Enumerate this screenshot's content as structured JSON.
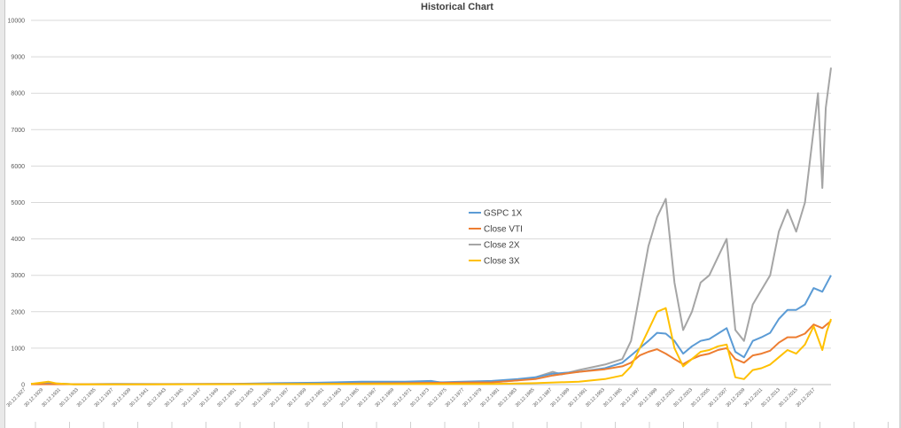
{
  "chart_data": {
    "type": "line",
    "title": "Historical Chart",
    "xlabel": "",
    "ylabel": "",
    "ylim": [
      0,
      10000
    ],
    "y_ticks": [
      0,
      1000,
      2000,
      3000,
      4000,
      5000,
      6000,
      7000,
      8000,
      9000,
      10000
    ],
    "x_range": [
      1927,
      2019
    ],
    "x_tick_labels": [
      "30.12.1927",
      "30.12.1929",
      "30.12.1931",
      "30.12.1933",
      "30.12.1935",
      "30.12.1937",
      "30.12.1939",
      "30.12.1941",
      "30.12.1943",
      "30.12.1945",
      "30.12.1947",
      "30.12.1949",
      "30.12.1951",
      "30.12.1953",
      "30.12.1955",
      "30.12.1957",
      "30.12.1959",
      "30.12.1961",
      "30.12.1963",
      "30.12.1965",
      "30.12.1967",
      "30.12.1969",
      "30.12.1971",
      "30.12.1973",
      "30.12.1975",
      "30.12.1977",
      "30.12.1979",
      "30.12.1981",
      "30.12.1983",
      "30.12.1985",
      "30.12.1987",
      "30.12.1989",
      "30.12.1991",
      "30.12.1993",
      "30.12.1995",
      "30.12.1997",
      "30.12.1999",
      "30.12.2001",
      "30.12.2003",
      "30.12.2005",
      "30.12.2007",
      "30.12.2009",
      "30.12.2011",
      "30.12.2013",
      "30.12.2015",
      "30.12.2017"
    ],
    "grid": true,
    "legend_position": "center",
    "series": [
      {
        "name": "GSPC 1X",
        "color": "#5b9bd5",
        "points": [
          [
            1927,
            20
          ],
          [
            1929,
            30
          ],
          [
            1932,
            10
          ],
          [
            1937,
            20
          ],
          [
            1942,
            15
          ],
          [
            1950,
            20
          ],
          [
            1955,
            40
          ],
          [
            1960,
            50
          ],
          [
            1965,
            80
          ],
          [
            1970,
            80
          ],
          [
            1973,
            100
          ],
          [
            1974,
            60
          ],
          [
            1980,
            100
          ],
          [
            1983,
            150
          ],
          [
            1985,
            200
          ],
          [
            1987,
            300
          ],
          [
            1990,
            350
          ],
          [
            1993,
            450
          ],
          [
            1995,
            600
          ],
          [
            1996,
            800
          ],
          [
            1997,
            1000
          ],
          [
            1998,
            1200
          ],
          [
            1999,
            1420
          ],
          [
            2000,
            1400
          ],
          [
            2001,
            1200
          ],
          [
            2002,
            850
          ],
          [
            2003,
            1050
          ],
          [
            2004,
            1200
          ],
          [
            2005,
            1250
          ],
          [
            2006,
            1400
          ],
          [
            2007,
            1550
          ],
          [
            2008,
            900
          ],
          [
            2009,
            750
          ],
          [
            2010,
            1200
          ],
          [
            2011,
            1300
          ],
          [
            2012,
            1420
          ],
          [
            2013,
            1800
          ],
          [
            2014,
            2050
          ],
          [
            2015,
            2050
          ],
          [
            2016,
            2200
          ],
          [
            2017,
            2650
          ],
          [
            2018,
            2550
          ],
          [
            2019,
            3000
          ]
        ]
      },
      {
        "name": "Close VTI",
        "color": "#ed7d31",
        "points": [
          [
            1927,
            10
          ],
          [
            1930,
            10
          ],
          [
            1940,
            10
          ],
          [
            1950,
            15
          ],
          [
            1960,
            20
          ],
          [
            1970,
            40
          ],
          [
            1980,
            60
          ],
          [
            1985,
            150
          ],
          [
            1987,
            250
          ],
          [
            1990,
            350
          ],
          [
            1993,
            420
          ],
          [
            1995,
            500
          ],
          [
            1996,
            600
          ],
          [
            1997,
            800
          ],
          [
            1998,
            900
          ],
          [
            1999,
            970
          ],
          [
            2000,
            850
          ],
          [
            2001,
            700
          ],
          [
            2002,
            560
          ],
          [
            2003,
            700
          ],
          [
            2004,
            800
          ],
          [
            2005,
            850
          ],
          [
            2006,
            950
          ],
          [
            2007,
            1000
          ],
          [
            2008,
            700
          ],
          [
            2009,
            600
          ],
          [
            2010,
            800
          ],
          [
            2011,
            850
          ],
          [
            2012,
            930
          ],
          [
            2013,
            1150
          ],
          [
            2014,
            1300
          ],
          [
            2015,
            1300
          ],
          [
            2016,
            1400
          ],
          [
            2017,
            1650
          ],
          [
            2018,
            1550
          ],
          [
            2019,
            1750
          ]
        ]
      },
      {
        "name": "Close 2X",
        "color": "#a5a5a5",
        "points": [
          [
            1927,
            20
          ],
          [
            1929,
            40
          ],
          [
            1932,
            10
          ],
          [
            1940,
            10
          ],
          [
            1950,
            20
          ],
          [
            1960,
            40
          ],
          [
            1965,
            60
          ],
          [
            1970,
            60
          ],
          [
            1973,
            80
          ],
          [
            1975,
            50
          ],
          [
            1980,
            60
          ],
          [
            1983,
            120
          ],
          [
            1985,
            200
          ],
          [
            1987,
            350
          ],
          [
            1988,
            280
          ],
          [
            1990,
            400
          ],
          [
            1993,
            550
          ],
          [
            1995,
            700
          ],
          [
            1996,
            1200
          ],
          [
            1997,
            2500
          ],
          [
            1998,
            3800
          ],
          [
            1999,
            4600
          ],
          [
            2000,
            5100
          ],
          [
            2001,
            2800
          ],
          [
            2002,
            1500
          ],
          [
            2003,
            2000
          ],
          [
            2004,
            2800
          ],
          [
            2005,
            3000
          ],
          [
            2006,
            3500
          ],
          [
            2007,
            4000
          ],
          [
            2008,
            1500
          ],
          [
            2009,
            1200
          ],
          [
            2010,
            2200
          ],
          [
            2011,
            2600
          ],
          [
            2012,
            3000
          ],
          [
            2013,
            4200
          ],
          [
            2014,
            4800
          ],
          [
            2015,
            4200
          ],
          [
            2016,
            5000
          ],
          [
            2017,
            7000
          ],
          [
            2017.5,
            8000
          ],
          [
            2018,
            5400
          ],
          [
            2018.4,
            7600
          ],
          [
            2019,
            8700
          ]
        ]
      },
      {
        "name": "Close 3X",
        "color": "#ffc000",
        "points": [
          [
            1927,
            20
          ],
          [
            1929,
            80
          ],
          [
            1930,
            30
          ],
          [
            1932,
            5
          ],
          [
            1940,
            5
          ],
          [
            1950,
            10
          ],
          [
            1960,
            15
          ],
          [
            1970,
            15
          ],
          [
            1980,
            20
          ],
          [
            1985,
            40
          ],
          [
            1990,
            80
          ],
          [
            1993,
            150
          ],
          [
            1995,
            250
          ],
          [
            1996,
            500
          ],
          [
            1997,
            1000
          ],
          [
            1998,
            1500
          ],
          [
            1999,
            2000
          ],
          [
            2000,
            2100
          ],
          [
            2001,
            1000
          ],
          [
            2002,
            500
          ],
          [
            2003,
            700
          ],
          [
            2004,
            900
          ],
          [
            2005,
            950
          ],
          [
            2006,
            1050
          ],
          [
            2007,
            1100
          ],
          [
            2008,
            200
          ],
          [
            2009,
            150
          ],
          [
            2010,
            400
          ],
          [
            2011,
            450
          ],
          [
            2012,
            550
          ],
          [
            2013,
            750
          ],
          [
            2014,
            950
          ],
          [
            2015,
            850
          ],
          [
            2016,
            1100
          ],
          [
            2017,
            1600
          ],
          [
            2018,
            950
          ],
          [
            2018.5,
            1450
          ],
          [
            2019,
            1800
          ]
        ]
      }
    ]
  }
}
